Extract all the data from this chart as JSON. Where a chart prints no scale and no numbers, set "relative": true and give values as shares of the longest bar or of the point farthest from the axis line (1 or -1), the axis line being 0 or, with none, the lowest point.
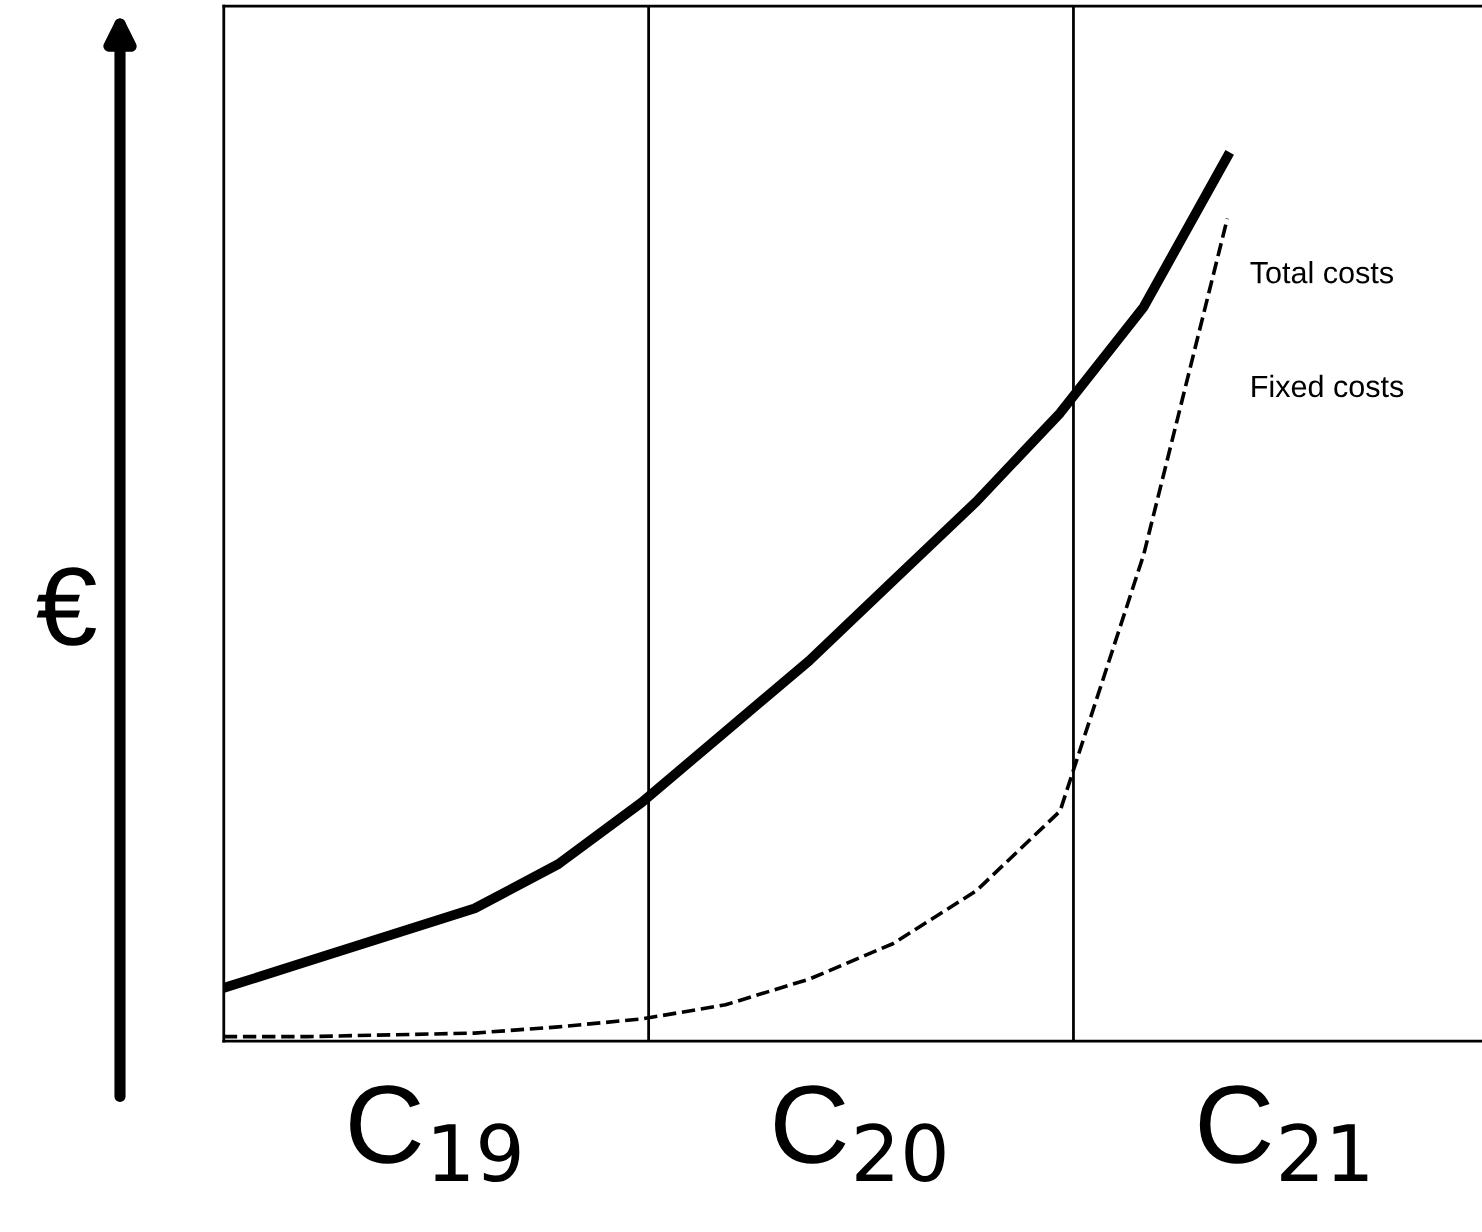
{
  "chart_data": {
    "type": "line",
    "relative": true,
    "ylabel": "€",
    "categories": [
      null,
      null,
      null,
      null,
      null,
      null,
      null,
      null,
      null,
      null,
      null,
      null,
      null
    ],
    "series": [
      {
        "name": "Total costs",
        "color": "#000000",
        "line_style": "solid",
        "values": [
          0.06,
          0.09,
          0.12,
          0.15,
          0.2,
          0.27,
          0.35,
          0.43,
          0.52,
          0.61,
          0.71,
          0.83,
          1.0
        ]
      },
      {
        "name": "Fixed costs",
        "color": "#000000",
        "line_style": "dashed",
        "values": [
          0.005,
          0.005,
          0.007,
          0.009,
          0.016,
          0.025,
          0.041,
          0.07,
          0.11,
          0.17,
          0.26,
          0.55,
          0.93
        ]
      }
    ],
    "annotations": [
      "C$_{19}$",
      "C$_{20}$",
      "C$_{21}$"
    ],
    "legend": false,
    "marker": "none"
  }
}
